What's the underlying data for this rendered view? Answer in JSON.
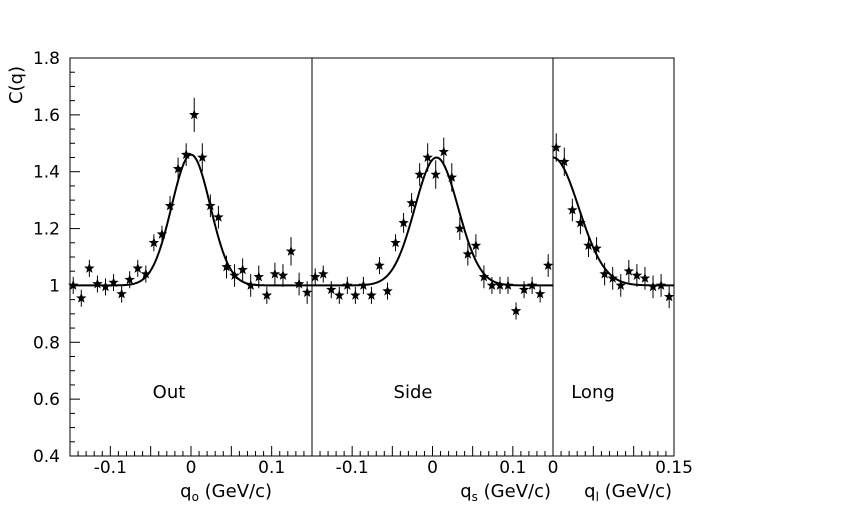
{
  "chart_data": [
    {
      "type": "scatter",
      "panel_label": "Out",
      "ylabel": "C(q)",
      "xlabel_main": "q",
      "xlabel_sub": "o",
      "xlabel_unit": " (GeV/c)",
      "xlim": [
        -0.15,
        0.15
      ],
      "ylim": [
        0.4,
        1.8
      ],
      "xticks": [
        -0.1,
        0,
        0.1
      ],
      "xtick_labels": [
        "-0.1",
        "0",
        "0.1"
      ],
      "yticks": [
        0.4,
        0.6,
        0.8,
        1.0,
        1.2,
        1.4,
        1.6,
        1.8
      ],
      "ytick_labels": [
        "0.4",
        "0.6",
        "0.8",
        "1",
        "1.2",
        "1.4",
        "1.6",
        "1.8"
      ],
      "points": [
        {
          "x": -0.146,
          "y": 1.0,
          "err": 0.03
        },
        {
          "x": -0.136,
          "y": 0.955,
          "err": 0.03
        },
        {
          "x": -0.126,
          "y": 1.06,
          "err": 0.03
        },
        {
          "x": -0.116,
          "y": 1.005,
          "err": 0.03
        },
        {
          "x": -0.106,
          "y": 0.995,
          "err": 0.03
        },
        {
          "x": -0.096,
          "y": 1.01,
          "err": 0.03
        },
        {
          "x": -0.086,
          "y": 0.97,
          "err": 0.03
        },
        {
          "x": -0.076,
          "y": 1.02,
          "err": 0.03
        },
        {
          "x": -0.066,
          "y": 1.06,
          "err": 0.03
        },
        {
          "x": -0.056,
          "y": 1.04,
          "err": 0.03
        },
        {
          "x": -0.046,
          "y": 1.15,
          "err": 0.03
        },
        {
          "x": -0.036,
          "y": 1.18,
          "err": 0.03
        },
        {
          "x": -0.026,
          "y": 1.28,
          "err": 0.035
        },
        {
          "x": -0.016,
          "y": 1.41,
          "err": 0.04
        },
        {
          "x": -0.006,
          "y": 1.46,
          "err": 0.04
        },
        {
          "x": 0.004,
          "y": 1.6,
          "err": 0.06
        },
        {
          "x": 0.014,
          "y": 1.45,
          "err": 0.05
        },
        {
          "x": 0.024,
          "y": 1.28,
          "err": 0.04
        },
        {
          "x": 0.034,
          "y": 1.24,
          "err": 0.04
        },
        {
          "x": 0.044,
          "y": 1.065,
          "err": 0.04
        },
        {
          "x": 0.054,
          "y": 1.035,
          "err": 0.04
        },
        {
          "x": 0.064,
          "y": 1.055,
          "err": 0.04
        },
        {
          "x": 0.074,
          "y": 1.0,
          "err": 0.04
        },
        {
          "x": 0.084,
          "y": 1.03,
          "err": 0.04
        },
        {
          "x": 0.094,
          "y": 0.965,
          "err": 0.03
        },
        {
          "x": 0.104,
          "y": 1.04,
          "err": 0.04
        },
        {
          "x": 0.114,
          "y": 1.035,
          "err": 0.04
        },
        {
          "x": 0.124,
          "y": 1.12,
          "err": 0.05
        },
        {
          "x": 0.134,
          "y": 1.005,
          "err": 0.04
        },
        {
          "x": 0.144,
          "y": 0.975,
          "err": 0.04
        }
      ],
      "fit": {
        "baseline": 1.0,
        "amplitude": 0.46,
        "center": 0.0,
        "width": 0.024
      }
    },
    {
      "type": "scatter",
      "panel_label": "Side",
      "xlabel_main": "q",
      "xlabel_sub": "s",
      "xlabel_unit": " (GeV/c)",
      "xlim": [
        -0.15,
        0.15
      ],
      "ylim": [
        0.4,
        1.8
      ],
      "xticks": [
        -0.1,
        0,
        0.1
      ],
      "xtick_labels": [
        "-0.1",
        "0",
        "0.1"
      ],
      "points": [
        {
          "x": -0.146,
          "y": 1.03,
          "err": 0.03
        },
        {
          "x": -0.136,
          "y": 1.04,
          "err": 0.03
        },
        {
          "x": -0.126,
          "y": 0.985,
          "err": 0.03
        },
        {
          "x": -0.116,
          "y": 0.965,
          "err": 0.03
        },
        {
          "x": -0.106,
          "y": 1.0,
          "err": 0.03
        },
        {
          "x": -0.096,
          "y": 0.965,
          "err": 0.03
        },
        {
          "x": -0.086,
          "y": 1.0,
          "err": 0.03
        },
        {
          "x": -0.076,
          "y": 0.965,
          "err": 0.03
        },
        {
          "x": -0.066,
          "y": 1.07,
          "err": 0.03
        },
        {
          "x": -0.056,
          "y": 0.98,
          "err": 0.03
        },
        {
          "x": -0.046,
          "y": 1.15,
          "err": 0.03
        },
        {
          "x": -0.036,
          "y": 1.22,
          "err": 0.035
        },
        {
          "x": -0.026,
          "y": 1.29,
          "err": 0.035
        },
        {
          "x": -0.016,
          "y": 1.39,
          "err": 0.04
        },
        {
          "x": -0.006,
          "y": 1.45,
          "err": 0.05
        },
        {
          "x": 0.004,
          "y": 1.39,
          "err": 0.05
        },
        {
          "x": 0.014,
          "y": 1.47,
          "err": 0.05
        },
        {
          "x": 0.024,
          "y": 1.38,
          "err": 0.05
        },
        {
          "x": 0.034,
          "y": 1.2,
          "err": 0.04
        },
        {
          "x": 0.044,
          "y": 1.11,
          "err": 0.04
        },
        {
          "x": 0.054,
          "y": 1.14,
          "err": 0.04
        },
        {
          "x": 0.064,
          "y": 1.03,
          "err": 0.04
        },
        {
          "x": 0.074,
          "y": 1.0,
          "err": 0.03
        },
        {
          "x": 0.084,
          "y": 1.0,
          "err": 0.03
        },
        {
          "x": 0.094,
          "y": 1.0,
          "err": 0.03
        },
        {
          "x": 0.104,
          "y": 0.91,
          "err": 0.03
        },
        {
          "x": 0.114,
          "y": 0.985,
          "err": 0.03
        },
        {
          "x": 0.124,
          "y": 1.0,
          "err": 0.03
        },
        {
          "x": 0.134,
          "y": 0.97,
          "err": 0.03
        },
        {
          "x": 0.144,
          "y": 1.07,
          "err": 0.04
        }
      ],
      "fit": {
        "baseline": 1.0,
        "amplitude": 0.45,
        "center": 0.005,
        "width": 0.027
      }
    },
    {
      "type": "scatter",
      "panel_label": "Long",
      "xlabel_main": "q",
      "xlabel_sub": "l",
      "xlabel_unit": " (GeV/c)",
      "xlim": [
        0,
        0.15
      ],
      "ylim": [
        0.4,
        1.8
      ],
      "xticks": [
        0,
        0.15
      ],
      "xtick_labels": [
        "0",
        "0.15"
      ],
      "points": [
        {
          "x": 0.004,
          "y": 1.485,
          "err": 0.05
        },
        {
          "x": 0.014,
          "y": 1.435,
          "err": 0.05
        },
        {
          "x": 0.024,
          "y": 1.265,
          "err": 0.04
        },
        {
          "x": 0.034,
          "y": 1.22,
          "err": 0.04
        },
        {
          "x": 0.044,
          "y": 1.14,
          "err": 0.04
        },
        {
          "x": 0.054,
          "y": 1.13,
          "err": 0.04
        },
        {
          "x": 0.064,
          "y": 1.04,
          "err": 0.04
        },
        {
          "x": 0.074,
          "y": 1.025,
          "err": 0.04
        },
        {
          "x": 0.084,
          "y": 1.0,
          "err": 0.04
        },
        {
          "x": 0.094,
          "y": 1.05,
          "err": 0.04
        },
        {
          "x": 0.104,
          "y": 1.035,
          "err": 0.04
        },
        {
          "x": 0.114,
          "y": 1.025,
          "err": 0.04
        },
        {
          "x": 0.124,
          "y": 0.995,
          "err": 0.04
        },
        {
          "x": 0.134,
          "y": 1.0,
          "err": 0.04
        },
        {
          "x": 0.144,
          "y": 0.96,
          "err": 0.04
        }
      ],
      "fit": {
        "baseline": 1.0,
        "amplitude": 0.45,
        "center": 0.0,
        "width": 0.032
      }
    }
  ]
}
